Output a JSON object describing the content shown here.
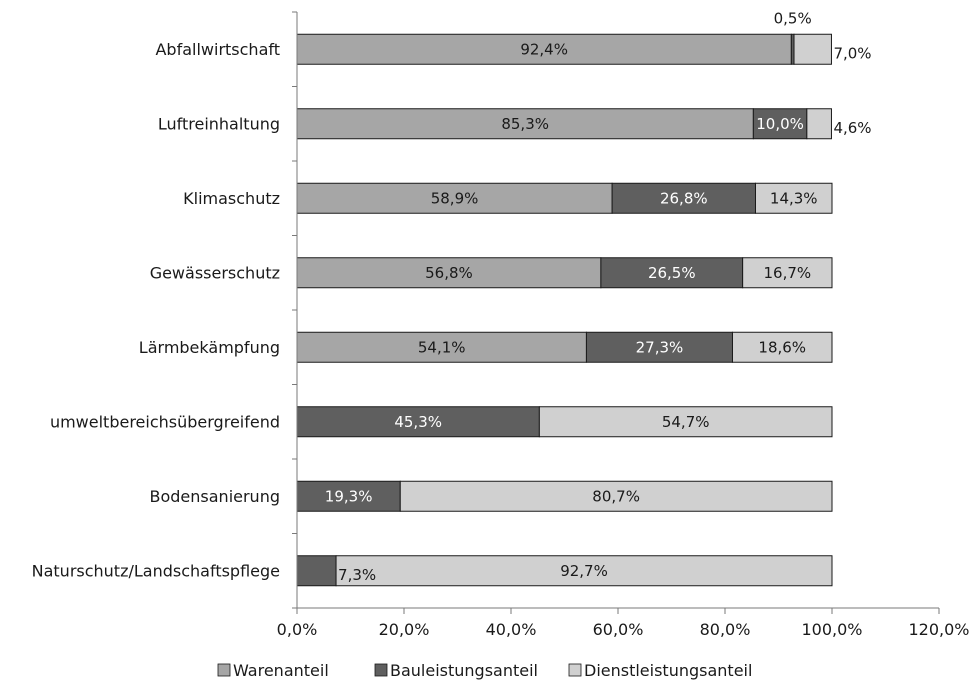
{
  "chart_data": {
    "type": "bar",
    "orientation": "horizontal",
    "stacked": true,
    "categories": [
      "Abfallwirtschaft",
      "Luftreinhaltung",
      "Klimaschutz",
      "Gewässerschutz",
      "Lärmbekämpfung",
      "umweltbereichsübergreifend",
      "Bodensanierung",
      "Naturschutz/Landschaftspflege"
    ],
    "series": [
      {
        "name": "Warenanteil",
        "color": "#a6a6a6",
        "label_color": "#1a1a1a",
        "values": [
          92.4,
          85.3,
          58.9,
          56.8,
          54.1,
          0,
          0,
          0
        ],
        "labels": [
          "92,4%",
          "85,3%",
          "58,9%",
          "56,8%",
          "54,1%",
          "",
          "",
          ""
        ]
      },
      {
        "name": "Bauleistungsanteil",
        "color": "#5f5f5f",
        "label_color": "#ffffff",
        "values": [
          0.5,
          10.0,
          26.8,
          26.5,
          27.3,
          45.3,
          19.3,
          7.3
        ],
        "labels": [
          "0,5%",
          "10,0%",
          "26,8%",
          "26,5%",
          "27,3%",
          "45,3%",
          "19,3%",
          "7,3%"
        ]
      },
      {
        "name": "Dienstleistungsanteil",
        "color": "#d0d0d0",
        "label_color": "#1a1a1a",
        "values": [
          7.0,
          4.6,
          14.3,
          16.7,
          18.6,
          54.7,
          80.7,
          92.7
        ],
        "labels": [
          "7,0%",
          "4,6%",
          "14,3%",
          "16,7%",
          "18,6%",
          "54,7%",
          "80,7%",
          "92,7%"
        ]
      }
    ],
    "xlim": [
      0,
      120
    ],
    "x_ticks": [
      "0,0%",
      "20,0%",
      "40,0%",
      "60,0%",
      "80,0%",
      "100,0%",
      "120,0%"
    ],
    "title": "",
    "xlabel": "",
    "ylabel": "",
    "legend_position": "bottom",
    "grid": false
  }
}
